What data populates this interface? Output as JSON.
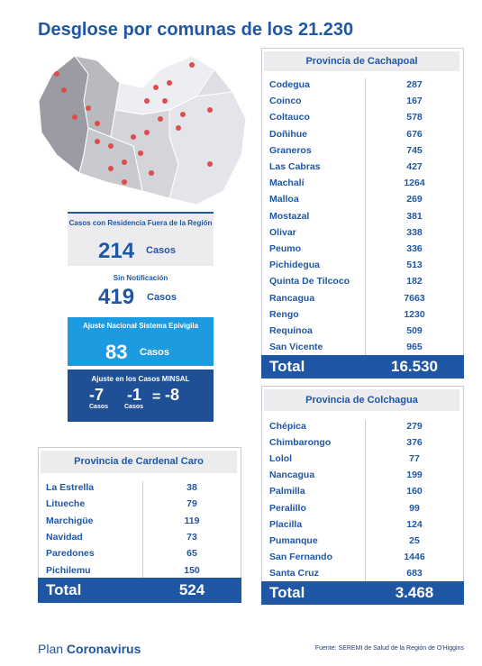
{
  "title": "Desglose por comunas de los 21.230",
  "boxes": {
    "residence": {
      "label": "Casos con Residencia Fuera de la Región",
      "value": "214",
      "unit": "Casos"
    },
    "unnotified": {
      "label": "Sin Notificación",
      "value": "419",
      "unit": "Casos"
    },
    "national_adjust": {
      "label": "Ajuste Nacional Sistema Epivigila",
      "value": "83",
      "unit": "Casos"
    },
    "minsal": {
      "label": "Ajuste en los Casos MINSAL",
      "a": "-7",
      "a_unit": "Casos",
      "b": "-1",
      "b_unit": "Casos",
      "equals": "=",
      "total": "-8"
    }
  },
  "tables": {
    "cachapoal": {
      "title": "Provincia de Cachapoal",
      "rows": [
        [
          "Codegua",
          287
        ],
        [
          "Coinco",
          167
        ],
        [
          "Coltauco",
          578
        ],
        [
          "Doñihue",
          676
        ],
        [
          "Graneros",
          745
        ],
        [
          "Las Cabras",
          427
        ],
        [
          "Machalí",
          1264
        ],
        [
          "Malloa",
          269
        ],
        [
          "Mostazal",
          381
        ],
        [
          "Olivar",
          338
        ],
        [
          "Peumo",
          336
        ],
        [
          "Pichidegua",
          513
        ],
        [
          "Quinta De Tilcoco",
          182
        ],
        [
          "Rancagua",
          7663
        ],
        [
          "Rengo",
          1230
        ],
        [
          "Requínoa",
          509
        ],
        [
          "San Vicente",
          965
        ]
      ],
      "total_label": "Total",
      "total": "16.530"
    },
    "colchagua": {
      "title": "Provincia de Colchagua",
      "rows": [
        [
          "Chépica",
          279
        ],
        [
          "Chimbarongo",
          376
        ],
        [
          "Lolol",
          77
        ],
        [
          "Nancagua",
          199
        ],
        [
          "Palmilla",
          160
        ],
        [
          "Peralillo",
          99
        ],
        [
          "Placilla",
          124
        ],
        [
          "Pumanque",
          25
        ],
        [
          "San Fernando",
          1446
        ],
        [
          "Santa Cruz",
          683
        ]
      ],
      "total_label": "Total",
      "total": "3.468"
    },
    "cardenal_caro": {
      "title": "Provincia de Cardenal Caro",
      "rows": [
        [
          "La Estrella",
          38
        ],
        [
          "Litueche",
          79
        ],
        [
          "Marchigüe",
          119
        ],
        [
          "Navidad",
          73
        ],
        [
          "Paredones",
          65
        ],
        [
          "Pichilemu",
          150
        ]
      ],
      "total_label": "Total",
      "total": "524"
    }
  },
  "footer": {
    "plan": "Plan",
    "coronavirus": "Coronavirus",
    "source": "Fuente: SEREMI de Salud de la Región de O'Higgins"
  }
}
